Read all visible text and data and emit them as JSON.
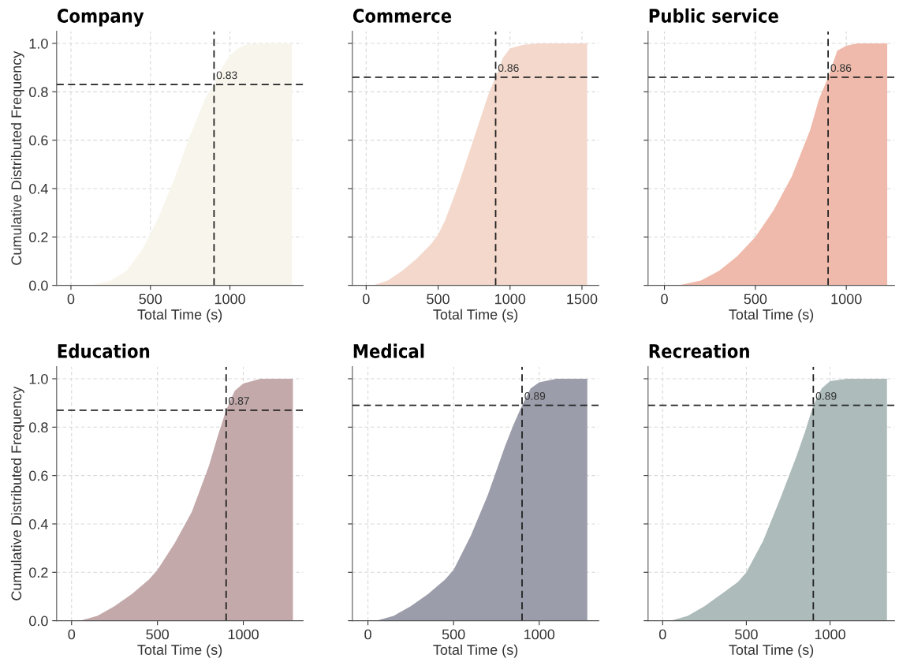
{
  "chart_data": [
    {
      "type": "area",
      "title": "Company",
      "xlabel": "Total Time (s)",
      "ylabel": "Cumulative Distributed Frequency",
      "xlim": [
        -90,
        1460
      ],
      "ylim": [
        0,
        1.05
      ],
      "xticks": [
        0,
        500,
        1000
      ],
      "yticks": [
        {
          "value": 0,
          "label": "0.0"
        },
        {
          "value": 0.2,
          "label": "0.2"
        },
        {
          "value": 0.4,
          "label": "0.4"
        },
        {
          "value": 0.6,
          "label": "0.6"
        },
        {
          "value": 0.8,
          "label": "0.8"
        },
        {
          "value": 1,
          "label": "1.0"
        }
      ],
      "grid": true,
      "x": [
        0,
        130,
        250,
        350,
        450,
        550,
        650,
        750,
        850,
        900,
        950,
        1000,
        1050,
        1100,
        1200,
        1390
      ],
      "series": [
        {
          "color": "#f8f5ec",
          "values": [
            0,
            0,
            0.02,
            0.06,
            0.15,
            0.28,
            0.44,
            0.62,
            0.78,
            0.83,
            0.9,
            0.95,
            0.98,
            0.995,
            1.0,
            1.0
          ]
        }
      ],
      "ref_lines": [
        {
          "axis": "x",
          "value": 900,
          "color": "#222222",
          "line_style": "dashed"
        },
        {
          "axis": "y",
          "value": 0.83,
          "label": "0.83",
          "color": "#222222",
          "line_style": "dashed"
        }
      ]
    },
    {
      "type": "area",
      "title": "Commerce",
      "xlabel": "Total Time (s)",
      "xlim": [
        -96,
        1617
      ],
      "ylim": [
        0,
        1.05
      ],
      "xticks": [
        0,
        500,
        1000,
        1500
      ],
      "yticks": [
        0,
        0.2,
        0.4,
        0.6,
        0.8,
        1
      ],
      "tick_labels": "x",
      "grid": true,
      "x": [
        0,
        50,
        150,
        250,
        350,
        450,
        500,
        550,
        650,
        750,
        850,
        900,
        950,
        1000,
        1100,
        1200,
        1536
      ],
      "series": [
        {
          "color": "#f3d8cb",
          "values": [
            0,
            0,
            0.02,
            0.06,
            0.11,
            0.17,
            0.21,
            0.27,
            0.43,
            0.61,
            0.79,
            0.86,
            0.94,
            0.98,
            0.995,
            1.0,
            1.0
          ]
        }
      ],
      "ref_lines": [
        {
          "axis": "x",
          "value": 900,
          "color": "#222222",
          "line_style": "dashed"
        },
        {
          "axis": "y",
          "value": 0.86,
          "label": "0.86",
          "color": "#222222",
          "line_style": "dashed"
        }
      ]
    },
    {
      "type": "area",
      "title": "Public service",
      "xlabel": "Total Time (s)",
      "xlim": [
        -90,
        1265
      ],
      "ylim": [
        0,
        1.05
      ],
      "xticks": [
        0,
        500,
        1000
      ],
      "yticks": [
        0,
        0.2,
        0.4,
        0.6,
        0.8,
        1
      ],
      "tick_labels": "x",
      "grid": true,
      "x": [
        0,
        80,
        200,
        300,
        400,
        500,
        600,
        700,
        800,
        850,
        900,
        950,
        1000,
        1060,
        1225
      ],
      "series": [
        {
          "color": "#efbaab",
          "values": [
            0,
            0,
            0.02,
            0.06,
            0.12,
            0.2,
            0.31,
            0.45,
            0.64,
            0.77,
            0.86,
            0.97,
            0.99,
            1.0,
            1.0
          ]
        }
      ],
      "ref_lines": [
        {
          "axis": "x",
          "value": 900,
          "color": "#222222",
          "line_style": "dashed"
        },
        {
          "axis": "y",
          "value": 0.86,
          "label": "0.86",
          "color": "#222222",
          "line_style": "dashed"
        }
      ]
    },
    {
      "type": "area",
      "title": "Education",
      "xlabel": "Total Time (s)",
      "ylabel": "Cumulative Distributed Frequency",
      "xlim": [
        -87,
        1348
      ],
      "ylim": [
        0,
        1.05
      ],
      "xticks": [
        0,
        500,
        1000
      ],
      "yticks": [
        {
          "value": 0,
          "label": "0.0"
        },
        {
          "value": 0.2,
          "label": "0.2"
        },
        {
          "value": 0.4,
          "label": "0.4"
        },
        {
          "value": 0.6,
          "label": "0.6"
        },
        {
          "value": 0.8,
          "label": "0.8"
        },
        {
          "value": 1,
          "label": "1.0"
        }
      ],
      "grid": true,
      "x": [
        0,
        50,
        150,
        250,
        350,
        450,
        500,
        600,
        700,
        800,
        850,
        900,
        950,
        1000,
        1100,
        1289
      ],
      "series": [
        {
          "color": "#c3a9aa",
          "values": [
            0,
            0,
            0.02,
            0.06,
            0.11,
            0.17,
            0.21,
            0.32,
            0.45,
            0.64,
            0.76,
            0.87,
            0.95,
            0.98,
            1.0,
            1.0
          ]
        }
      ],
      "ref_lines": [
        {
          "axis": "x",
          "value": 900,
          "color": "#222222",
          "line_style": "dashed"
        },
        {
          "axis": "y",
          "value": 0.87,
          "label": "0.87",
          "color": "#222222",
          "line_style": "dashed"
        }
      ]
    },
    {
      "type": "area",
      "title": "Medical",
      "xlabel": "Total Time (s)",
      "xlim": [
        -91,
        1348
      ],
      "ylim": [
        0,
        1.05
      ],
      "xticks": [
        0,
        500,
        1000
      ],
      "yticks": [
        0,
        0.2,
        0.4,
        0.6,
        0.8,
        1
      ],
      "tick_labels": "x",
      "grid": true,
      "x": [
        0,
        50,
        150,
        250,
        350,
        450,
        500,
        600,
        700,
        800,
        850,
        900,
        950,
        1000,
        1100,
        1281
      ],
      "series": [
        {
          "color": "#9b9daa",
          "values": [
            0,
            0,
            0.02,
            0.06,
            0.11,
            0.17,
            0.21,
            0.35,
            0.52,
            0.72,
            0.81,
            0.89,
            0.96,
            0.985,
            1.0,
            1.0
          ]
        }
      ],
      "ref_lines": [
        {
          "axis": "x",
          "value": 900,
          "color": "#222222",
          "line_style": "dashed"
        },
        {
          "axis": "y",
          "value": 0.89,
          "label": "0.89",
          "color": "#222222",
          "line_style": "dashed"
        }
      ]
    },
    {
      "type": "area",
      "title": "Recreation",
      "xlabel": "Total Time (s)",
      "xlim": [
        -87,
        1385
      ],
      "ylim": [
        0,
        1.05
      ],
      "xticks": [
        0,
        500,
        1000
      ],
      "yticks": [
        0,
        0.2,
        0.4,
        0.6,
        0.8,
        1
      ],
      "tick_labels": "x",
      "grid": true,
      "x": [
        0,
        50,
        150,
        250,
        350,
        450,
        500,
        600,
        700,
        800,
        850,
        900,
        950,
        1000,
        1100,
        1340
      ],
      "series": [
        {
          "color": "#adbbbb",
          "values": [
            0,
            0,
            0.02,
            0.06,
            0.11,
            0.16,
            0.2,
            0.33,
            0.5,
            0.68,
            0.78,
            0.89,
            0.96,
            0.99,
            1.0,
            1.0
          ]
        }
      ],
      "ref_lines": [
        {
          "axis": "x",
          "value": 900,
          "color": "#222222",
          "line_style": "dashed"
        },
        {
          "axis": "y",
          "value": 0.89,
          "label": "0.89",
          "color": "#222222",
          "line_style": "dashed"
        }
      ]
    }
  ]
}
